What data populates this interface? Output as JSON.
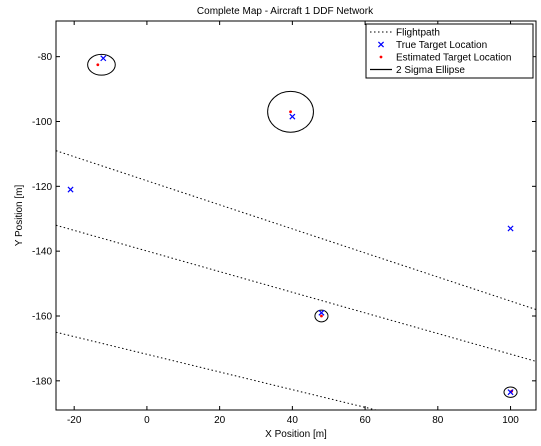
{
  "chart_data": {
    "type": "scatter",
    "title": "Complete Map - Aircraft 1 DDF Network",
    "xlabel": "X Position [m]",
    "ylabel": "Y Position [m]",
    "xlim": [
      -25,
      107
    ],
    "ylim": [
      -189,
      -69
    ],
    "xticks": [
      -20,
      0,
      20,
      40,
      60,
      80,
      100
    ],
    "yticks": [
      -80,
      -100,
      -120,
      -140,
      -160,
      -180
    ],
    "grid": false,
    "legend_position": "top-right",
    "legend": [
      {
        "label": "Flightpath",
        "style": "dotted-line"
      },
      {
        "label": "True Target Location",
        "style": "x-marker"
      },
      {
        "label": "Estimated Target Location",
        "style": "dot-marker"
      },
      {
        "label": "2 Sigma Ellipse",
        "style": "solid-line"
      }
    ],
    "colors": {
      "true_target": "#0000ff",
      "estimated_target": "#ff0000",
      "flightpath": "#000000",
      "ellipse": "#000000"
    },
    "series": [
      {
        "name": "Flightpath",
        "lines": [
          [
            [
              -25,
              -109
            ],
            [
              107,
              -158
            ]
          ],
          [
            [
              -25,
              -132
            ],
            [
              107,
              -174
            ]
          ],
          [
            [
              -25,
              -165
            ],
            [
              63,
              -189
            ]
          ]
        ]
      },
      {
        "name": "True Target Location",
        "points": [
          [
            -12,
            -80.5
          ],
          [
            40,
            -98.5
          ],
          [
            -21,
            -121
          ],
          [
            100,
            -133
          ],
          [
            48,
            -159
          ],
          [
            100,
            -183.5
          ]
        ]
      },
      {
        "name": "Estimated Target Location",
        "points": [
          [
            -13.5,
            -82.5
          ],
          [
            39.5,
            -97
          ],
          [
            48,
            -160
          ],
          [
            100.3,
            -183.2
          ]
        ]
      },
      {
        "name": "2 Sigma Ellipse",
        "ellipses": [
          {
            "cx": -12.5,
            "cy": -82.5,
            "rx": 3.8,
            "ry": 3.2
          },
          {
            "cx": 39.5,
            "cy": -97,
            "rx": 6.3,
            "ry": 6.3
          },
          {
            "cx": 48,
            "cy": -160,
            "rx": 1.8,
            "ry": 1.8
          },
          {
            "cx": 100,
            "cy": -183.5,
            "rx": 1.8,
            "ry": 1.6
          }
        ]
      }
    ]
  }
}
